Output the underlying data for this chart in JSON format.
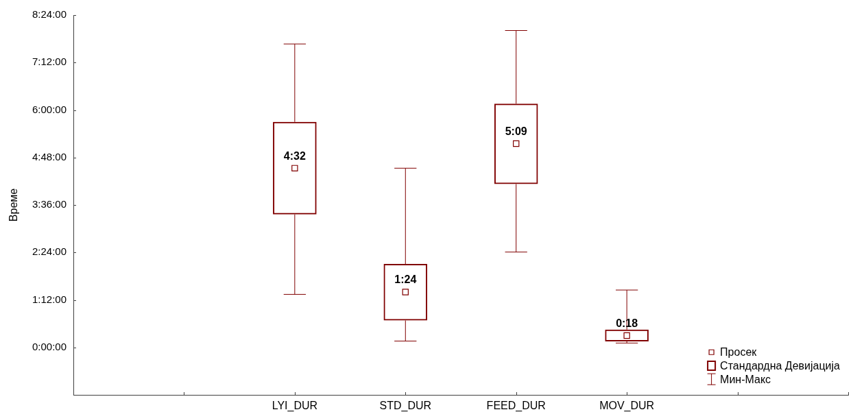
{
  "chart_data": {
    "type": "bar",
    "ylabel": "Време",
    "categories": [
      null,
      null,
      "LYI_DUR",
      "STD_DUR",
      "FEED_DUR",
      "MOV_DUR",
      null,
      null
    ],
    "ylim": [
      -1.2,
      8.4
    ],
    "yticks": [
      {
        "value": 0,
        "label": "0:00:00"
      },
      {
        "value": 1.2,
        "label": "1:12:00"
      },
      {
        "value": 2.4,
        "label": "2:24:00"
      },
      {
        "value": 3.6,
        "label": "3:36:00"
      },
      {
        "value": 4.8,
        "label": "4:48:00"
      },
      {
        "value": 6,
        "label": "6:00:00"
      },
      {
        "value": 7.2,
        "label": "7:12:00"
      },
      {
        "value": 8.4,
        "label": "8:24:00"
      }
    ],
    "legend": "bottom right",
    "series": [
      {
        "name": "Просек",
        "type": "scatter",
        "color": "#800000",
        "marker": "square",
        "values": [
          null,
          null,
          4.53,
          1.4,
          5.15,
          0.3,
          null,
          null
        ],
        "value_labels": [
          null,
          null,
          "4:32",
          "1:24",
          "5:09",
          "0:18",
          null,
          null
        ],
        "errors": [
          null,
          null,
          [
            1.34,
            7.67
          ],
          [
            0.16,
            4.53
          ],
          [
            2.41,
            8.01
          ],
          [
            0.11,
            1.45
          ],
          null,
          null
        ]
      },
      {
        "name": "Стандардна Девијација",
        "color": "#800000",
        "base": [
          null,
          null,
          3.36,
          0.68,
          4.13,
          0.15,
          null,
          null
        ],
        "values": [
          null,
          null,
          2.34,
          1.43,
          2.03,
          0.3,
          null,
          null
        ]
      },
      {
        "name": "Мин-Макс",
        "type": "scatter",
        "color": "#800000",
        "marker": "none",
        "values": [
          null,
          null,
          null,
          null,
          null,
          null,
          null,
          null
        ]
      }
    ]
  }
}
